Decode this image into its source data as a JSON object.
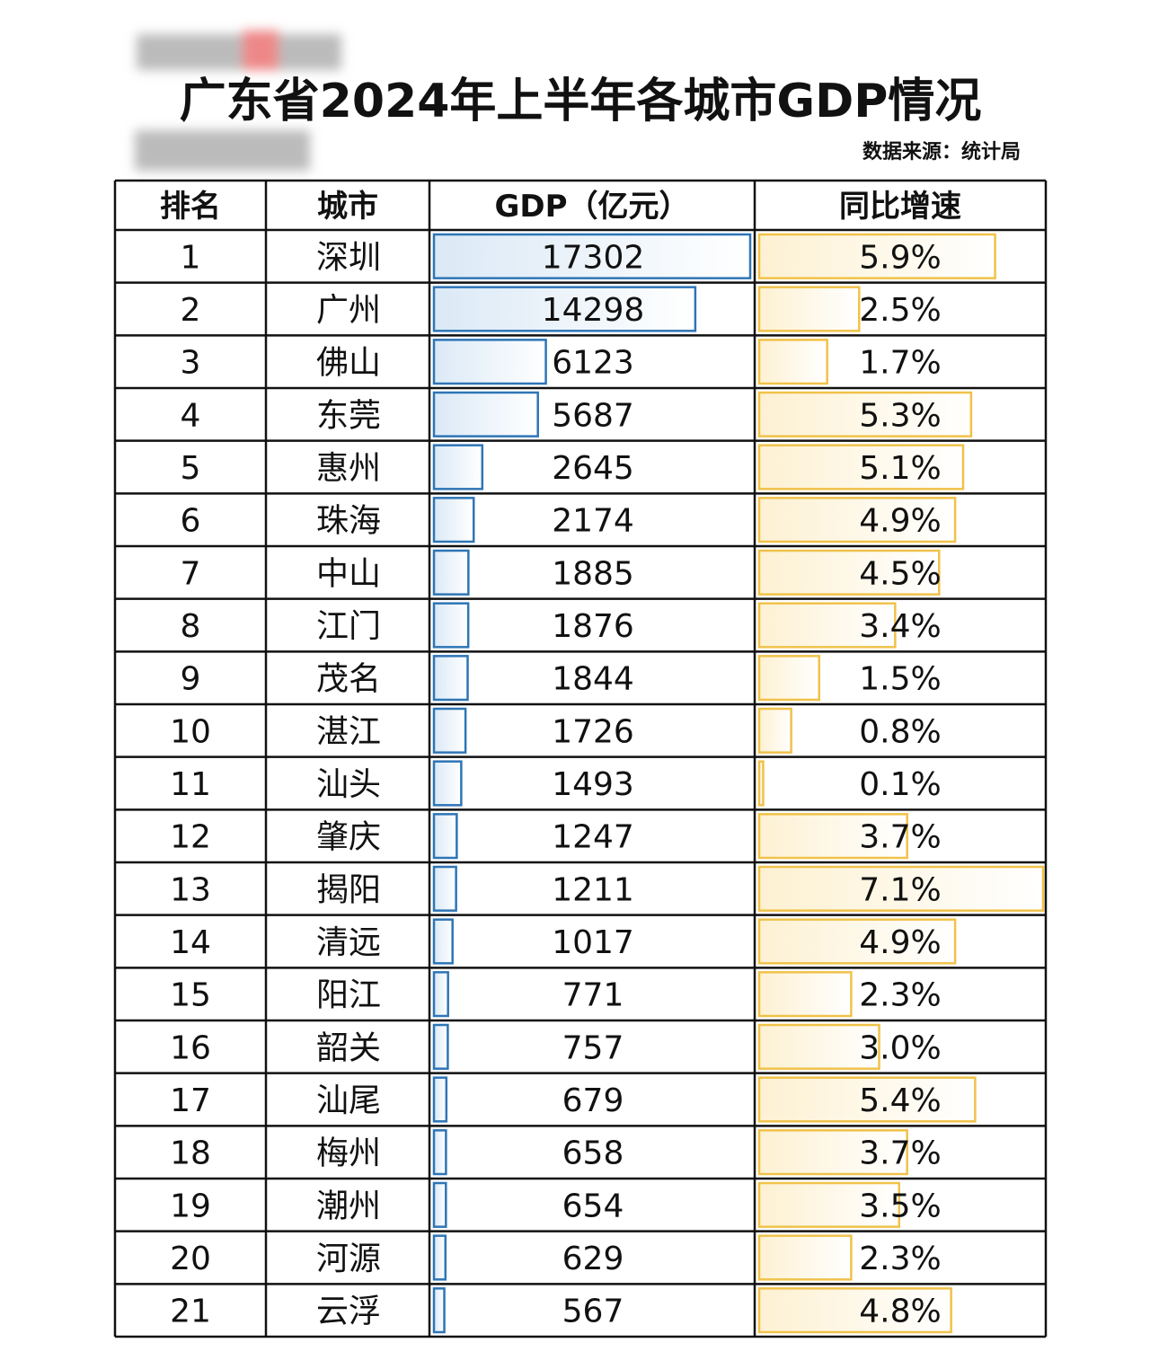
{
  "title": "广东省2024年上半年各城市GDP情况",
  "source": "数据来源：统计局",
  "table": {
    "headers": [
      "排名",
      "城市",
      "GDP（亿元）",
      "同比增速"
    ],
    "rank": [
      1,
      2,
      3,
      4,
      5,
      6,
      7,
      8,
      9,
      10,
      11,
      12,
      13,
      14,
      15,
      16,
      17,
      18,
      19,
      20,
      21
    ],
    "city": [
      "深圳",
      "广州",
      "佛山",
      "东莞",
      "惠州",
      "珠海",
      "中山",
      "江门",
      "茂名",
      "湛江",
      "汕头",
      "肇庆",
      "揭阳",
      "清远",
      "阳江",
      "韶关",
      "汕尾",
      "梅州",
      "潮州",
      "河源",
      "云浮"
    ],
    "gdp": [
      17302,
      14298,
      6123,
      5687,
      2645,
      2174,
      1885,
      1876,
      1844,
      1726,
      1493,
      1247,
      1211,
      1017,
      771,
      757,
      679,
      658,
      654,
      629,
      567
    ],
    "growth": [
      5.9,
      2.5,
      1.7,
      5.3,
      5.1,
      4.9,
      4.5,
      3.4,
      1.5,
      0.8,
      0.1,
      3.7,
      7.1,
      4.9,
      2.3,
      3.0,
      5.4,
      3.7,
      3.5,
      2.3,
      4.8
    ],
    "growth_labels": [
      "5.9%",
      "2.5%",
      "1.7%",
      "5.3%",
      "5.1%",
      "4.9%",
      "4.5%",
      "3.4%",
      "1.5%",
      "0.8%",
      "0.1%",
      "3.7%",
      "7.1%",
      "4.9%",
      "2.3%",
      "3.0%",
      "5.4%",
      "3.7%",
      "3.5%",
      "2.3%",
      "4.8%"
    ]
  }
}
